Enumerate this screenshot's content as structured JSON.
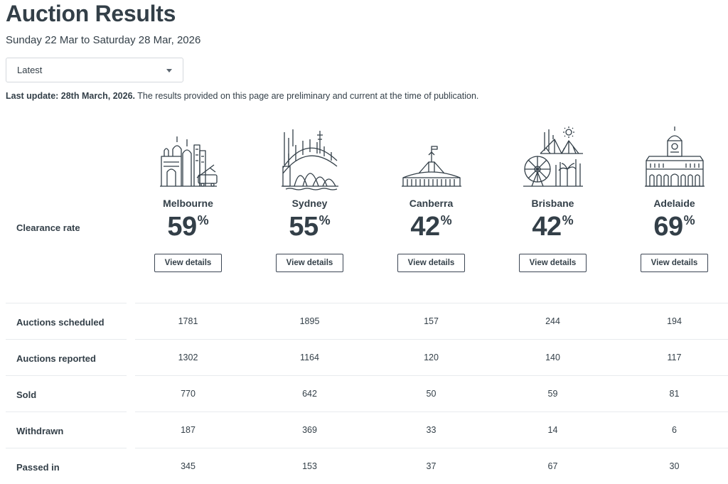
{
  "header": {
    "title": "Auction Results",
    "date_range": "Sunday 22 Mar to Saturday 28 Mar, 2026"
  },
  "period_select": {
    "value": "Latest"
  },
  "update_note": {
    "label": "Last update: 28th March, 2026.",
    "text": " The results provided on this page are preliminary and current at the time of publication."
  },
  "clearance": {
    "label": "Clearance rate",
    "percent_symbol": "%",
    "button_label": "View details"
  },
  "cities": [
    {
      "name": "Melbourne",
      "rate": "59",
      "icon": "melbourne-skyline-icon"
    },
    {
      "name": "Sydney",
      "rate": "55",
      "icon": "sydney-skyline-icon"
    },
    {
      "name": "Canberra",
      "rate": "42",
      "icon": "canberra-parliament-icon"
    },
    {
      "name": "Brisbane",
      "rate": "42",
      "icon": "brisbane-skyline-icon"
    },
    {
      "name": "Adelaide",
      "rate": "69",
      "icon": "adelaide-townhall-icon"
    }
  ],
  "stats": [
    {
      "label": "Auctions scheduled",
      "values": [
        "1781",
        "1895",
        "157",
        "244",
        "194"
      ]
    },
    {
      "label": "Auctions reported",
      "values": [
        "1302",
        "1164",
        "120",
        "140",
        "117"
      ]
    },
    {
      "label": "Sold",
      "values": [
        "770",
        "642",
        "50",
        "59",
        "81"
      ]
    },
    {
      "label": "Withdrawn",
      "values": [
        "187",
        "369",
        "33",
        "14",
        "6"
      ]
    },
    {
      "label": "Passed in",
      "values": [
        "345",
        "153",
        "37",
        "67",
        "30"
      ]
    }
  ],
  "colors": {
    "text": "#333f48",
    "border": "#d4d8dd",
    "divider": "#e8ebee"
  }
}
